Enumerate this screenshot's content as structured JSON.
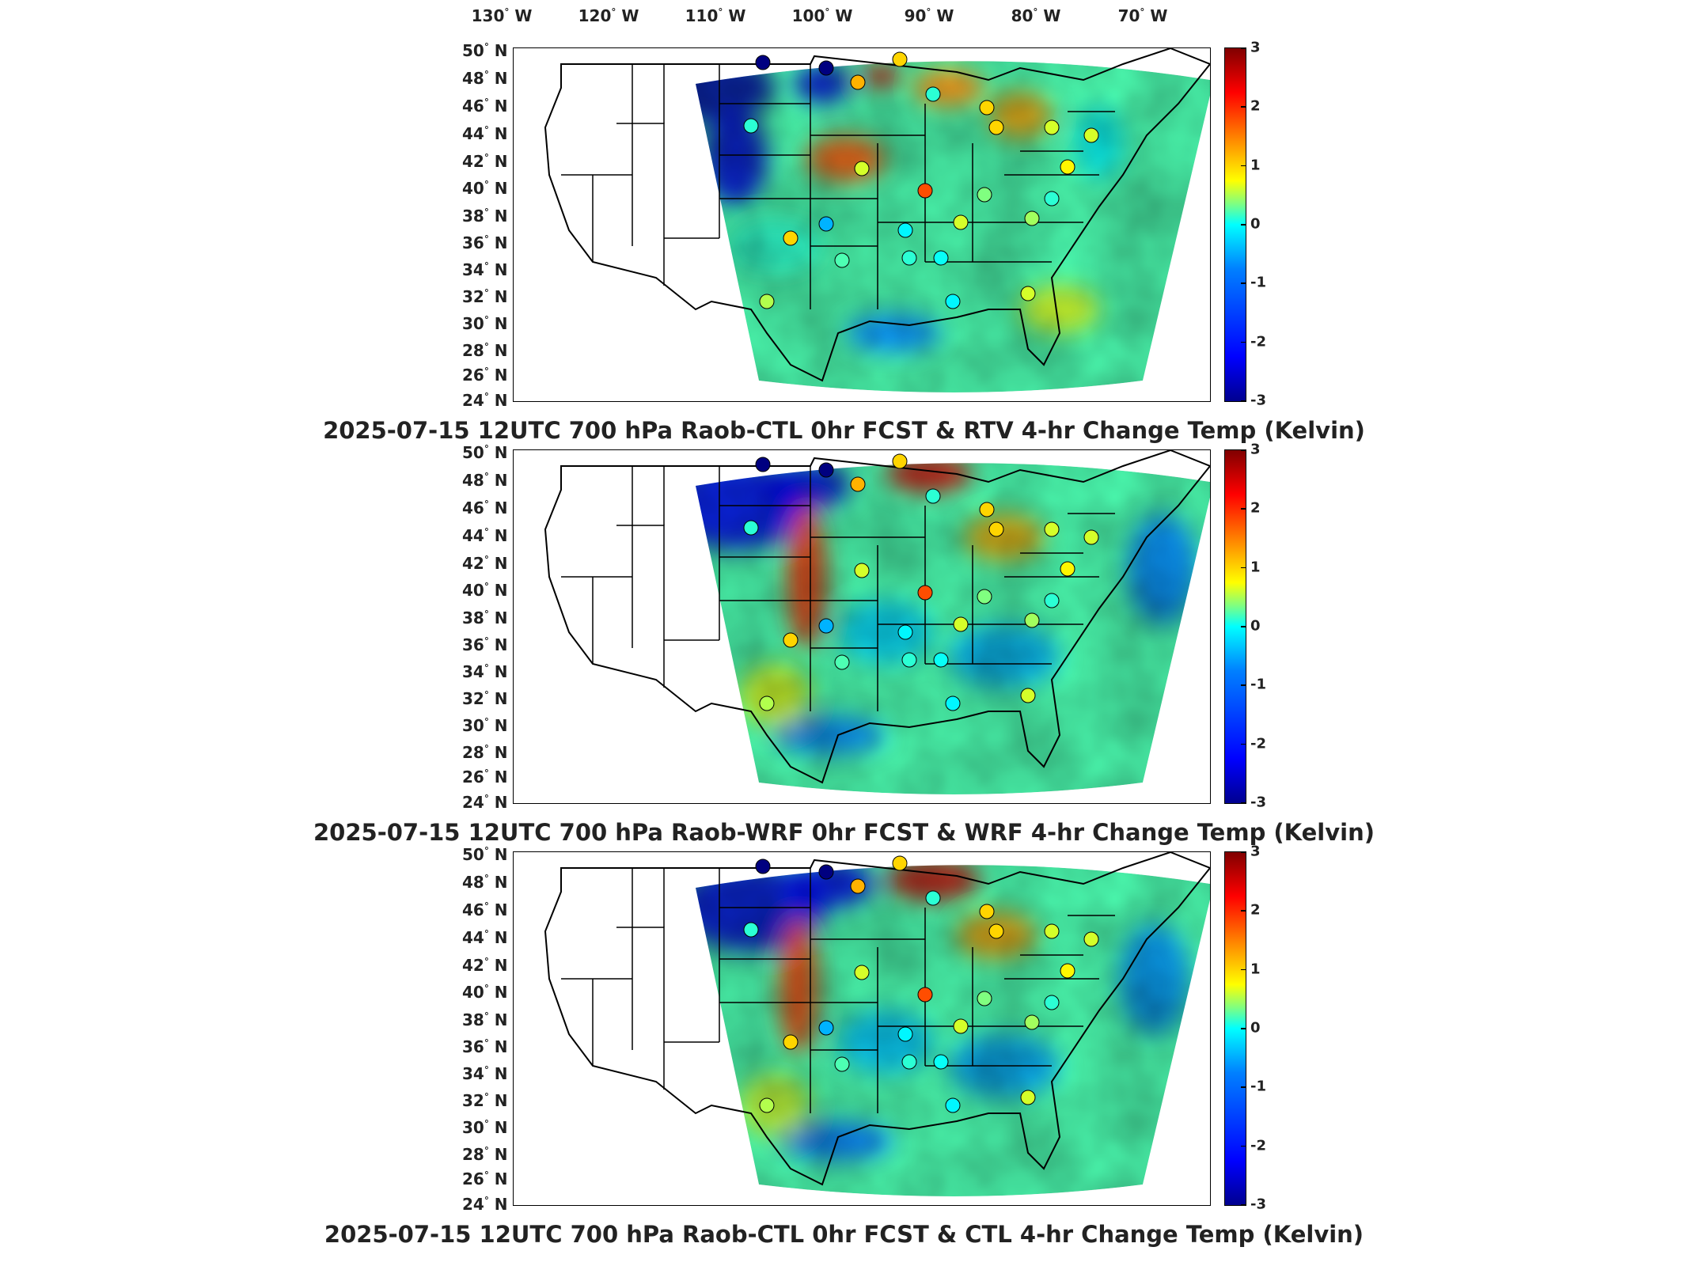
{
  "lon_ticks": [
    "130",
    "120",
    "110",
    "100",
    "90",
    "80",
    "70"
  ],
  "lon_suffix": "W",
  "lat_ticks": [
    "50",
    "48",
    "46",
    "44",
    "42",
    "40",
    "38",
    "36",
    "34",
    "32",
    "30",
    "28",
    "26",
    "24"
  ],
  "lat_suffix": "N",
  "colorbar_ticks": [
    "3",
    "2",
    "1",
    "0",
    "-1",
    "-2",
    "-3"
  ],
  "colormap": "jet",
  "panels": [
    {
      "caption": "2025-07-15 12UTC 700 hPa Raob-CTL 0hr FCST & RTV 4-hr Change Temp (Kelvin)"
    },
    {
      "caption": "2025-07-15 12UTC 700 hPa Raob-WRF 0hr FCST & WRF 4-hr Change Temp (Kelvin)"
    },
    {
      "caption": "2025-07-15 12UTC 700 hPa Raob-CTL 0hr FCST & CTL 4-hr Change Temp (Kelvin)"
    }
  ]
}
